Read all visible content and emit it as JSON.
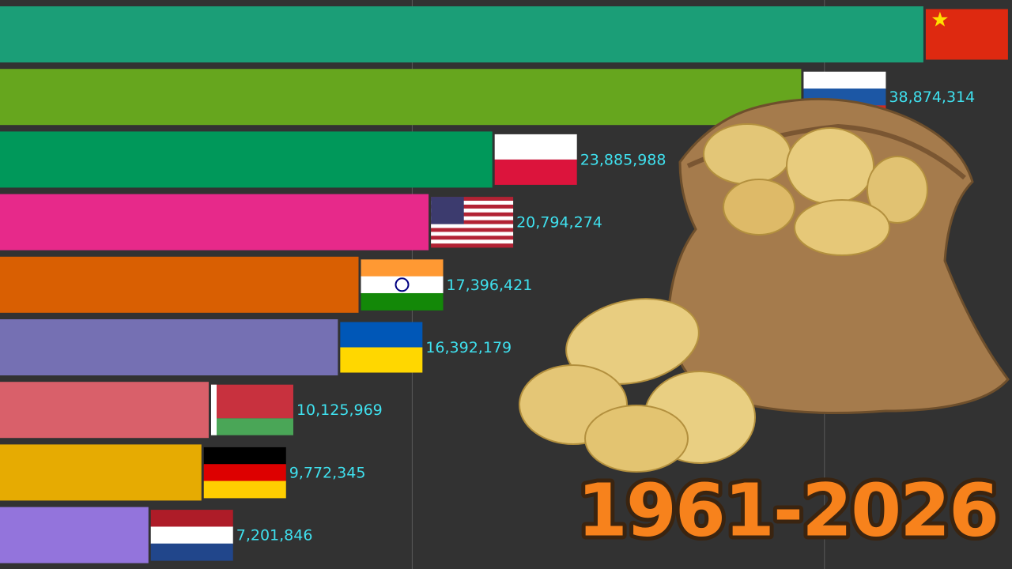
{
  "chart_data": {
    "type": "hbar",
    "title": "1961-2026",
    "values": [
      44800000,
      38874314,
      23885988,
      20794274,
      17396421,
      16392179,
      10125969,
      9772345,
      7201846
    ],
    "value_labels": [
      null,
      "38,874,314",
      "23,885,988",
      "20,794,274",
      "17,396,421",
      "16,392,179",
      "10,125,969",
      "9,772,345",
      "7,201,846"
    ],
    "colors": [
      "#1b9e77",
      "#66a61e",
      "#00985a",
      "#e7298a",
      "#d95f02",
      "#7570b3",
      "#d9606a",
      "#e6ab02",
      "#9374dc"
    ],
    "xlim": [
      0,
      49100000
    ],
    "xticks": [
      20000000,
      40000000
    ],
    "grid": true
  }
}
